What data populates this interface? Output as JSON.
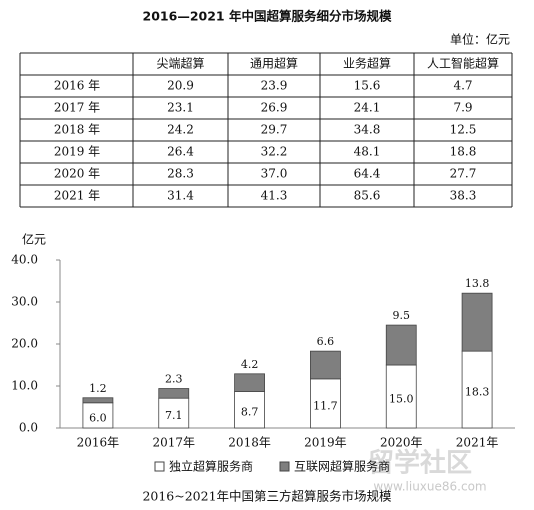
{
  "table": {
    "title": "2016—2021 年中国超算服务细分市场规模",
    "unit": "单位：亿元",
    "columns": [
      "尖端超算",
      "通用超算",
      "业务超算",
      "人工智能超算"
    ],
    "rows": [
      {
        "label": "2016 年",
        "cells": [
          "20.9",
          "23.9",
          "15.6",
          "4.7"
        ]
      },
      {
        "label": "2017 年",
        "cells": [
          "23.1",
          "26.9",
          "24.1",
          "7.9"
        ]
      },
      {
        "label": "2018 年",
        "cells": [
          "24.2",
          "29.7",
          "34.8",
          "12.5"
        ]
      },
      {
        "label": "2019 年",
        "cells": [
          "26.4",
          "32.2",
          "48.1",
          "18.8"
        ]
      },
      {
        "label": "2020 年",
        "cells": [
          "28.3",
          "37.0",
          "64.4",
          "27.7"
        ]
      },
      {
        "label": "2021 年",
        "cells": [
          "31.4",
          "41.3",
          "85.6",
          "38.3"
        ]
      }
    ]
  },
  "chart_data": {
    "type": "stacked_bar",
    "title": "2016~2021年中国第三方超算服务市场规模",
    "y_label": "亿元",
    "categories": [
      "2016年",
      "2017年",
      "2018年",
      "2019年",
      "2020年",
      "2021年"
    ],
    "series": [
      {
        "name": "独立超算服务商",
        "color": "#ffffff",
        "values": [
          6.0,
          7.1,
          8.7,
          11.7,
          15.0,
          18.3
        ],
        "value_labels": [
          "6.0",
          "7.1",
          "8.7",
          "11.7",
          "15.0",
          "18.3"
        ]
      },
      {
        "name": "互联网超算服务商",
        "color": "#7f7f7f",
        "values": [
          1.2,
          2.3,
          4.2,
          6.6,
          9.5,
          13.8
        ],
        "value_labels": [
          "1.2",
          "2.3",
          "4.2",
          "6.6",
          "9.5",
          "13.8"
        ]
      }
    ],
    "ylim": [
      0,
      40
    ],
    "yticks": [
      {
        "value": 0,
        "label": "0.0"
      },
      {
        "value": 10,
        "label": "10.0"
      },
      {
        "value": 20,
        "label": "20.0"
      },
      {
        "value": 30,
        "label": "30.0"
      },
      {
        "value": 40,
        "label": "40.0"
      }
    ]
  },
  "watermark": {
    "text": "留学社区",
    "url": "www.liuxue86.com"
  }
}
